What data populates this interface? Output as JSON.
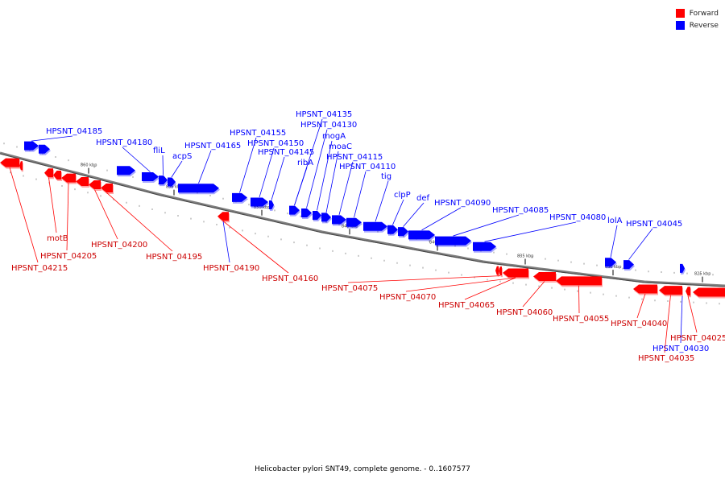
{
  "colors": {
    "forward": "#ff0000",
    "reverse": "#0000ff",
    "backbone": "#808080"
  },
  "legend": [
    {
      "label": "Forward",
      "color": "#ff0000"
    },
    {
      "label": "Reverse",
      "color": "#0000ff"
    }
  ],
  "caption": "Helicobacter pylori SNT49, complete genome. - 0..1607577",
  "ticks": [
    "860 kbp",
    "855 kbp",
    "850 kbp",
    "845 kbp",
    "840 kbp",
    "835 kbp",
    "830 kbp",
    "825 kbp"
  ],
  "genes": {
    "forward": [
      "HPSNT_04215",
      "motB",
      "HPSNT_04205",
      "HPSNT_04200",
      "HPSNT_04195",
      "HPSNT_04190",
      "HPSNT_04160",
      "HPSNT_04075",
      "HPSNT_04070",
      "HPSNT_04065",
      "HPSNT_04060",
      "HPSNT_04055",
      "HPSNT_04040",
      "HPSNT_04035",
      "HPSNT_04025"
    ],
    "reverse": [
      "HPSNT_04185",
      "HPSNT_04180",
      "fliL",
      "acpS",
      "HPSNT_04165",
      "HPSNT_04155",
      "HPSNT_04150",
      "HPSNT_04145",
      "HPSNT_04135",
      "HPSNT_04130",
      "mogA",
      "moaC",
      "ribA",
      "HPSNT_04115",
      "HPSNT_04110",
      "tig",
      "clpP",
      "def",
      "HPSNT_04090",
      "HPSNT_04085",
      "HPSNT_04080",
      "lolA",
      "HPSNT_04045",
      "HPSNT_04030"
    ]
  }
}
